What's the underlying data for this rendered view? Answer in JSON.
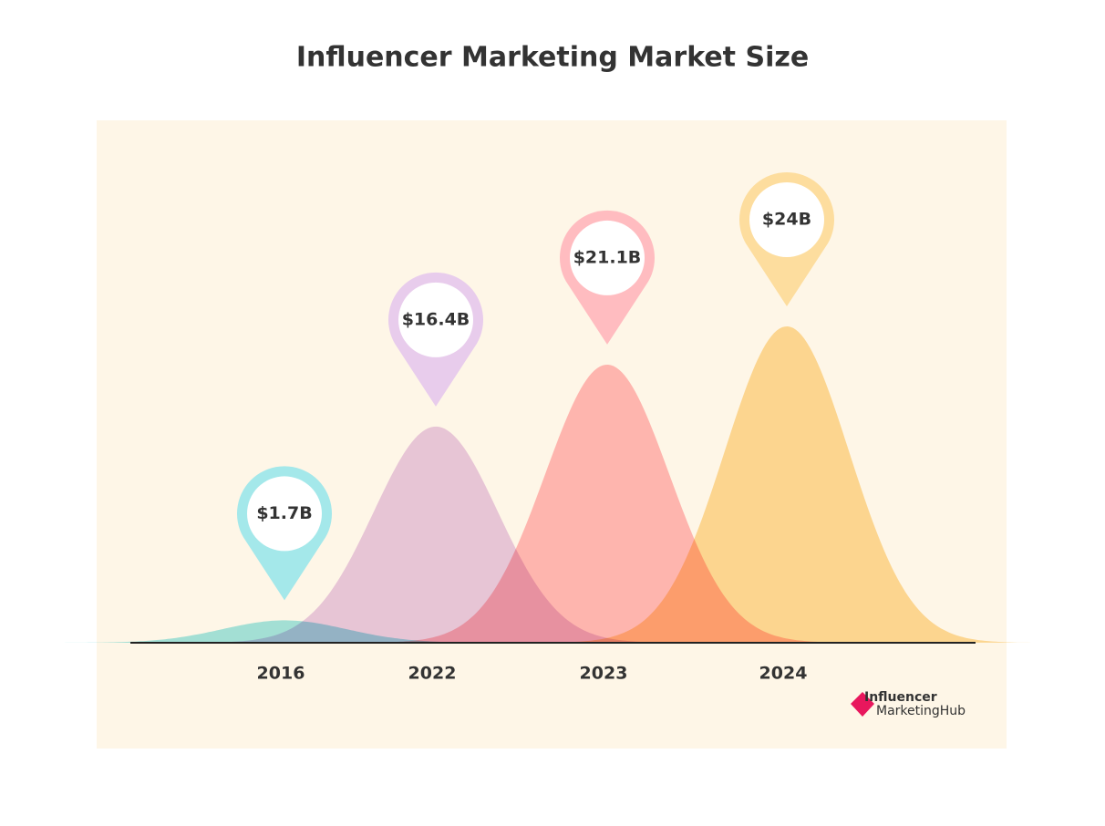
{
  "chart_data": {
    "type": "bell",
    "title": "Influencer Marketing Market Size",
    "categories": [
      "2016",
      "2022",
      "2023",
      "2024"
    ],
    "values": [
      1.7,
      16.4,
      21.1,
      24
    ],
    "value_labels": [
      "$1.7B",
      "$16.4B",
      "$21.1B",
      "$24B"
    ],
    "colors": [
      "#a4e8ea",
      "#e8ccec",
      "#ffbcc0",
      "#fddd9e"
    ],
    "brand": [
      "Influencer",
      "MarketingHub"
    ]
  }
}
